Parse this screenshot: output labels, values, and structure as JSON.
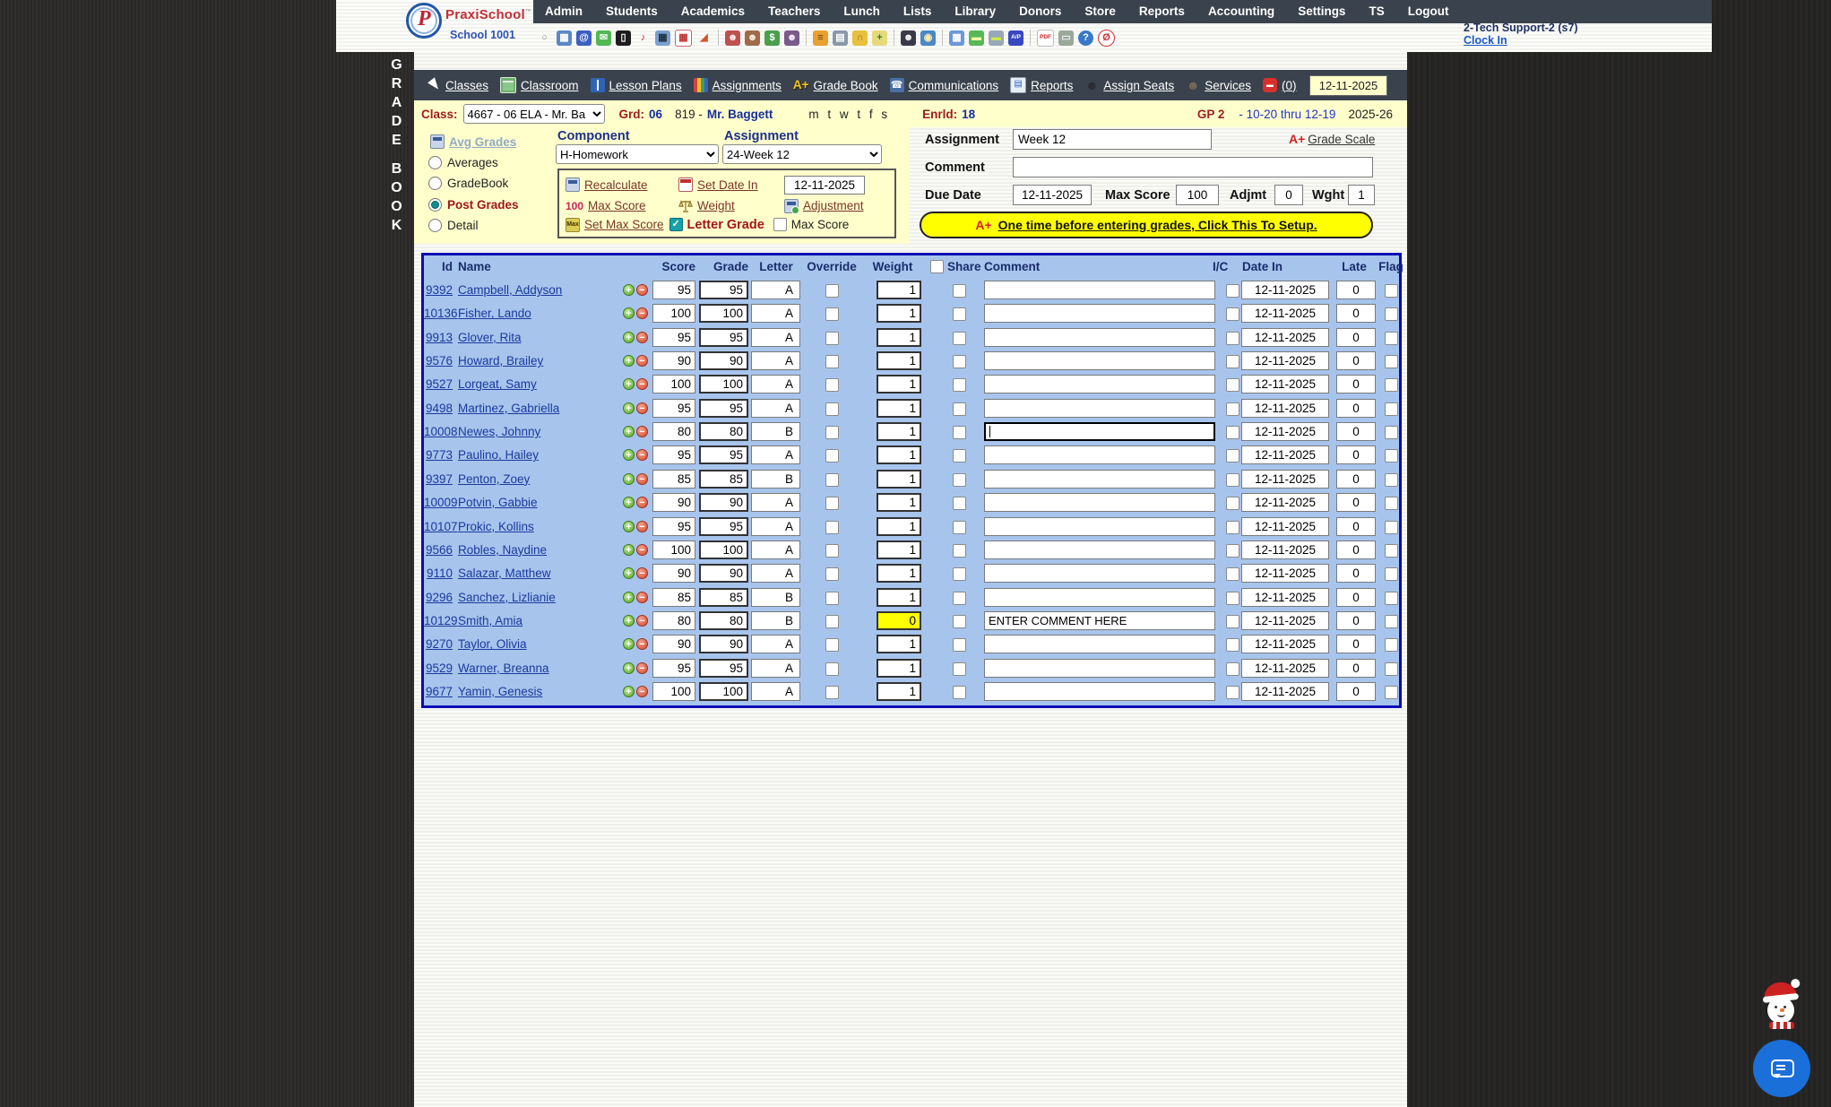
{
  "header": {
    "nav_items": [
      "Admin",
      "Students",
      "Academics",
      "Teachers",
      "Lunch",
      "Lists",
      "Library",
      "Donors",
      "Store",
      "Reports",
      "Accounting",
      "Settings",
      "TS",
      "Logout"
    ],
    "logo": {
      "monogram": "P",
      "brand": "PraxiSchool",
      "trademark": "™",
      "school": "School 1001"
    },
    "toolbar": [
      {
        "name": "search",
        "glyph": "○",
        "bg": "transparent",
        "fg": "#8a8a8a"
      },
      {
        "name": "schedule-grid",
        "glyph": "▦",
        "bg": "#5b87c5",
        "fg": "#ffffff"
      },
      {
        "name": "email",
        "glyph": "@",
        "bg": "#3b5fc0",
        "fg": "#ffffff"
      },
      {
        "name": "chat-bubble",
        "glyph": "✉",
        "bg": "#52b852",
        "fg": "#ffffff"
      },
      {
        "name": "mobile-phone",
        "glyph": "▯",
        "bg": "#1c1c1c",
        "fg": "#ffffff"
      },
      {
        "name": "speaker",
        "glyph": "♪",
        "bg": "transparent",
        "fg": "#c22222"
      },
      {
        "name": "gradebook-calc",
        "glyph": "▦",
        "bg": "#7aa0d0",
        "fg": "#223344"
      },
      {
        "name": "calendar",
        "glyph": "▦",
        "bg": "#ffffff",
        "fg": "#c23333",
        "br": "#c66666"
      },
      {
        "name": "megaphone",
        "glyph": "◢",
        "bg": "transparent",
        "fg": "#d4552a"
      },
      {
        "sep": true
      },
      {
        "name": "add-student",
        "glyph": "☻",
        "bg": "#c05050",
        "fg": "#ffeeee"
      },
      {
        "name": "student",
        "glyph": "☻",
        "bg": "#a06a4a",
        "fg": "#ffeedd"
      },
      {
        "name": "payments",
        "glyph": "$",
        "bg": "#4aa04a",
        "fg": "#ffffff"
      },
      {
        "name": "families",
        "glyph": "☻",
        "bg": "#7a5a8a",
        "fg": "#ffeeff"
      },
      {
        "sep": true
      },
      {
        "name": "lunch",
        "glyph": "≡",
        "bg": "#e8a030",
        "fg": "#6a3a10"
      },
      {
        "name": "facility",
        "glyph": "▤",
        "bg": "#8a98a8",
        "fg": "#ffffff"
      },
      {
        "name": "bell",
        "glyph": "∩",
        "bg": "#e8c040",
        "fg": "#97670f"
      },
      {
        "name": "notes-add",
        "glyph": "+",
        "bg": "#e6da7a",
        "fg": "#2a7a2a"
      },
      {
        "sep": true
      },
      {
        "name": "staff",
        "glyph": "☻",
        "bg": "#3a3a4a",
        "fg": "#ffffff"
      },
      {
        "name": "clock",
        "glyph": "◉",
        "bg": "#4a88c8",
        "fg": "#ffeeaa"
      },
      {
        "sep": true
      },
      {
        "name": "attendance-table",
        "glyph": "▦",
        "bg": "#6a98d8",
        "fg": "#ffffff"
      },
      {
        "name": "id-card",
        "glyph": "▬",
        "bg": "#58b858",
        "fg": "#ffffaa"
      },
      {
        "name": "print-card",
        "glyph": "▬",
        "bg": "#98a8b8",
        "fg": "#cde84a"
      },
      {
        "name": "accounts-ap",
        "glyph": "A/P",
        "bg": "#3848c0",
        "fg": "#ffffff",
        "small": true
      },
      {
        "sep": true
      },
      {
        "name": "pdf",
        "glyph": "PDF",
        "bg": "#ffffff",
        "fg": "#cc2222",
        "br": "#bbbbbb",
        "small": true
      },
      {
        "name": "printer",
        "glyph": "▭",
        "bg": "#9aa89a",
        "fg": "#eeeeee"
      },
      {
        "name": "help",
        "glyph": "?",
        "bg": "#3878c8",
        "fg": "#ffffff",
        "round": true
      },
      {
        "name": "stop",
        "glyph": "Ø",
        "bg": "#ffffff",
        "fg": "#cc3333",
        "br": "#cc3333",
        "round": true
      }
    ],
    "support_line": "2-Tech Support-2 (s7)",
    "clock_in": "Clock In"
  },
  "grade_rail": {
    "word1": "GRADE",
    "word2": "BOOK"
  },
  "secondary_nav": {
    "items": [
      {
        "name": "classes",
        "label": "Classes",
        "icon": "cursor",
        "glyph": ""
      },
      {
        "name": "classroom",
        "label": "Classroom",
        "icon": "classroom",
        "glyph": ""
      },
      {
        "name": "lesson-plans",
        "label": "Lesson Plans",
        "icon": "book",
        "glyph": ""
      },
      {
        "name": "assignments",
        "label": "Assignments",
        "icon": "assign",
        "glyph": ""
      },
      {
        "name": "grade-book",
        "label": "Grade Book",
        "icon": "aplus",
        "glyph": "A+"
      },
      {
        "name": "communications",
        "label": "Communications",
        "icon": "phone",
        "glyph": "☎"
      },
      {
        "name": "reports",
        "label": "Reports",
        "icon": "report",
        "glyph": "▤"
      },
      {
        "name": "assign-seats",
        "label": "Assign Seats",
        "icon": "person-dark",
        "glyph": "☻"
      },
      {
        "name": "services",
        "label": "Services",
        "icon": "person",
        "glyph": "☻"
      },
      {
        "name": "messages",
        "label": "(0)",
        "icon": "chat-red",
        "glyph": "▬"
      }
    ],
    "date": "12-11-2025"
  },
  "class_bar": {
    "class_label": "Class:",
    "class_value": "4667 - 06 ELA - Mr. Ba",
    "grd_label": "Grd:",
    "grd_value": "06",
    "section": "819 -",
    "teacher": "Mr. Baggett",
    "days": "m t w t f s",
    "enrld_label": "Enrld:",
    "enrld_value": "18",
    "gp": "GP 2",
    "gp_range": "- 10-20 thru 12-19",
    "year": "2025-26"
  },
  "left_panel": {
    "avg_grades_label": "Avg Grades",
    "options": [
      {
        "label": "Averages",
        "selected": false
      },
      {
        "label": "GradeBook",
        "selected": false
      },
      {
        "label": "Post Grades",
        "selected": true
      },
      {
        "label": "Detail",
        "selected": false
      }
    ]
  },
  "component_panel": {
    "component_label": "Component",
    "component_value": "H-Homework",
    "assignment_label": "Assignment",
    "assignment_value": "24-Week 12",
    "recalculate": "Recalculate",
    "set_date_in": "Set Date In",
    "date_value": "12-11-2025",
    "max_score_icon": "100",
    "max_score_link": "Max Score",
    "weight_link": "Weight",
    "adjustment": "Adjustment",
    "max_tile": "Max",
    "set_max_score": "Set Max Score",
    "letter_grade_check": "✓",
    "letter_grade": "Letter Grade",
    "max_score_cb": "Max Score"
  },
  "assignment_form": {
    "assignment_label": "Assignment",
    "assignment_value": "Week 12",
    "grade_scale_prefix": "A+",
    "grade_scale": "Grade Scale",
    "comment_label": "Comment",
    "comment_value": "",
    "due_date_label": "Due Date",
    "due_date_value": "12-11-2025",
    "max_score_label": "Max Score",
    "max_score_value": "100",
    "adjmt_label": "Adjmt",
    "adjmt_value": "0",
    "wght_label": "Wght",
    "wght_value": "1",
    "setup_prefix": "A+",
    "setup_text": "One time before entering grades, Click This To Setup."
  },
  "grade_table": {
    "headers": {
      "id": "Id",
      "name": "Name",
      "score": "Score",
      "grade": "Grade",
      "letter": "Letter",
      "override": "Override",
      "weight": "Weight",
      "share": "Share",
      "comment": "Comment",
      "ic": "I/C",
      "date_in": "Date In",
      "late": "Late",
      "flag": "Flag"
    },
    "default_date": "12-11-2025",
    "default_late": "0",
    "rows": [
      {
        "id": "9392",
        "name": "Campbell, Addyson",
        "score": "95",
        "grade": "95",
        "letter": "A",
        "weight": "1",
        "comment": ""
      },
      {
        "id": "10136",
        "name": "Fisher, Lando",
        "score": "100",
        "grade": "100",
        "letter": "A",
        "weight": "1",
        "comment": ""
      },
      {
        "id": "9913",
        "name": "Glover, Rita",
        "score": "95",
        "grade": "95",
        "letter": "A",
        "weight": "1",
        "comment": ""
      },
      {
        "id": "9576",
        "name": "Howard, Brailey",
        "score": "90",
        "grade": "90",
        "letter": "A",
        "weight": "1",
        "comment": ""
      },
      {
        "id": "9527",
        "name": "Lorgeat, Samy",
        "score": "100",
        "grade": "100",
        "letter": "A",
        "weight": "1",
        "comment": ""
      },
      {
        "id": "9498",
        "name": "Martinez, Gabriella",
        "score": "95",
        "grade": "95",
        "letter": "A",
        "weight": "1",
        "comment": ""
      },
      {
        "id": "10008",
        "name": "Newes, Johnny",
        "score": "80",
        "grade": "80",
        "letter": "B",
        "weight": "1",
        "comment": "",
        "comment_focused": true
      },
      {
        "id": "9773",
        "name": "Paulino, Hailey",
        "score": "95",
        "grade": "95",
        "letter": "A",
        "weight": "1",
        "comment": ""
      },
      {
        "id": "9397",
        "name": "Penton, Zoey",
        "score": "85",
        "grade": "85",
        "letter": "B",
        "weight": "1",
        "comment": ""
      },
      {
        "id": "10009",
        "name": "Potvin, Gabbie",
        "score": "90",
        "grade": "90",
        "letter": "A",
        "weight": "1",
        "comment": ""
      },
      {
        "id": "10107",
        "name": "Prokic, Kollins",
        "score": "95",
        "grade": "95",
        "letter": "A",
        "weight": "1",
        "comment": ""
      },
      {
        "id": "9566",
        "name": "Robles, Naydine",
        "score": "100",
        "grade": "100",
        "letter": "A",
        "weight": "1",
        "comment": ""
      },
      {
        "id": "9110",
        "name": "Salazar, Matthew",
        "score": "90",
        "grade": "90",
        "letter": "A",
        "weight": "1",
        "comment": ""
      },
      {
        "id": "9296",
        "name": "Sanchez, Lizlianie",
        "score": "85",
        "grade": "85",
        "letter": "B",
        "weight": "1",
        "comment": ""
      },
      {
        "id": "10129",
        "name": "Smith, Amia",
        "score": "80",
        "grade": "80",
        "letter": "B",
        "weight": "0",
        "weight_highlighted": true,
        "comment": "ENTER COMMENT HERE"
      },
      {
        "id": "9270",
        "name": "Taylor, Olivia",
        "score": "90",
        "grade": "90",
        "letter": "A",
        "weight": "1",
        "comment": ""
      },
      {
        "id": "9529",
        "name": "Warner, Breanna",
        "score": "95",
        "grade": "95",
        "letter": "A",
        "weight": "1",
        "comment": ""
      },
      {
        "id": "9677",
        "name": "Yamin, Genesis",
        "score": "100",
        "grade": "100",
        "letter": "A",
        "weight": "1",
        "comment": ""
      }
    ]
  },
  "colors": {
    "nav_bg": "#39424d",
    "band_yellow": "#ffffcc",
    "table_bg": "#a7c4ec",
    "table_border": "#0b0bb4",
    "highlight_yellow": "#ffff00",
    "link_navy": "#1b3a9e",
    "dark_red": "#a01616",
    "setup_yellow": "#ffff00"
  }
}
